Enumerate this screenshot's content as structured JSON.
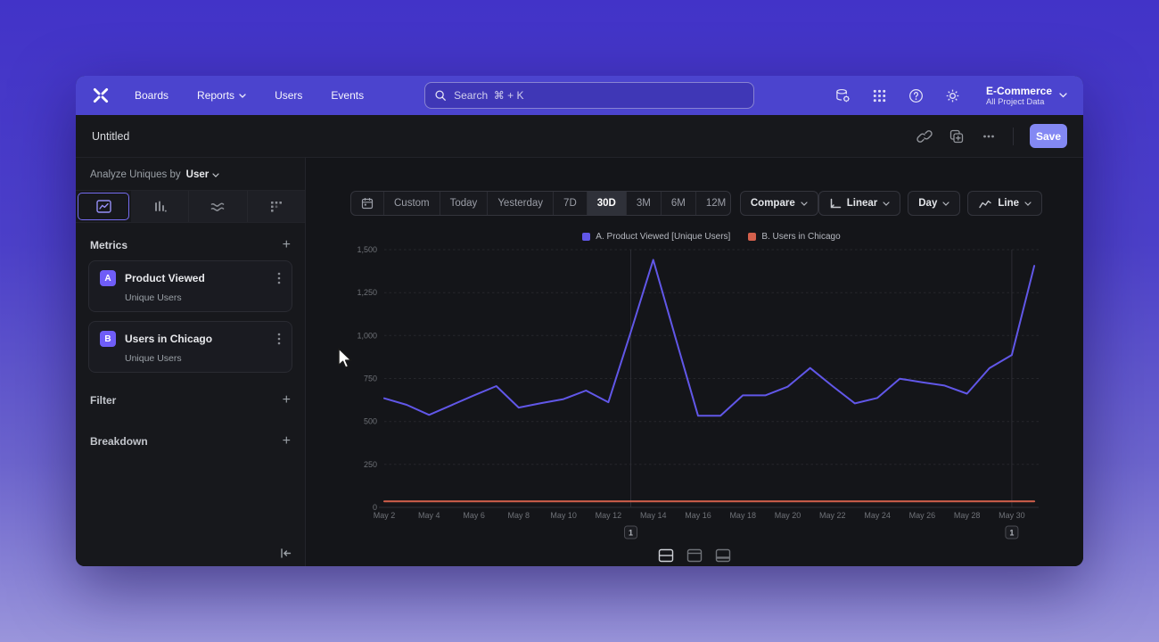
{
  "nav": {
    "items": [
      {
        "label": "Boards"
      },
      {
        "label": "Reports"
      },
      {
        "label": "Users"
      },
      {
        "label": "Events"
      }
    ],
    "search": {
      "placeholder": "Search  ⌘ + K"
    },
    "project": {
      "name": "E-Commerce",
      "scope": "All Project Data"
    }
  },
  "report_header": {
    "title": "Untitled",
    "save_label": "Save"
  },
  "sidebar": {
    "analyze_prefix": "Analyze Uniques by",
    "analyze_value": "User",
    "metrics_label": "Metrics",
    "filter_label": "Filter",
    "breakdown_label": "Breakdown",
    "add_symbol": "+",
    "metrics": [
      {
        "letter": "A",
        "name": "Product Viewed",
        "subtitle": "Unique Users"
      },
      {
        "letter": "B",
        "name": "Users in Chicago",
        "subtitle": "Unique Users"
      }
    ]
  },
  "toolbar": {
    "date_ranges": [
      "Custom",
      "Today",
      "Yesterday",
      "7D",
      "30D",
      "3M",
      "6M",
      "12M"
    ],
    "selected_range": "30D",
    "compare_label": "Compare",
    "scale_label": "Linear",
    "granularity_label": "Day",
    "chart_type_label": "Line"
  },
  "chart_data": {
    "type": "line",
    "title": "",
    "x": [
      "May 2",
      "May 3",
      "May 4",
      "May 5",
      "May 6",
      "May 7",
      "May 8",
      "May 9",
      "May 10",
      "May 11",
      "May 12",
      "May 13",
      "May 14",
      "May 15",
      "May 16",
      "May 17",
      "May 18",
      "May 19",
      "May 20",
      "May 21",
      "May 22",
      "May 23",
      "May 24",
      "May 25",
      "May 26",
      "May 27",
      "May 28",
      "May 29",
      "May 30",
      "May 31"
    ],
    "x_tick_every": 2,
    "ylim": [
      0,
      1500
    ],
    "yticks": [
      {
        "value": 0,
        "label": "0"
      },
      {
        "value": 250,
        "label": "250"
      },
      {
        "value": 500,
        "label": "500"
      },
      {
        "value": 750,
        "label": "750"
      },
      {
        "value": 1000,
        "label": "1,000"
      },
      {
        "value": 1250,
        "label": "1,250"
      },
      {
        "value": 1500,
        "label": "1,500"
      }
    ],
    "series": [
      {
        "name": "A. Product Viewed [Unique Users]",
        "color": "#6157e8",
        "values": [
          635,
          597,
          538,
          595,
          652,
          706,
          581,
          607,
          630,
          680,
          612,
          1020,
          1441,
          985,
          533,
          533,
          652,
          652,
          702,
          811,
          706,
          605,
          637,
          749,
          728,
          709,
          662,
          810,
          887,
          1406
        ]
      },
      {
        "name": "B. Users in Chicago",
        "color": "#d4604c",
        "values": [
          35,
          35,
          35,
          35,
          35,
          35,
          35,
          35,
          35,
          35,
          35,
          35,
          35,
          35,
          35,
          35,
          35,
          35,
          35,
          35,
          35,
          35,
          35,
          35,
          35,
          35,
          35,
          35,
          35,
          35
        ]
      }
    ],
    "annotations": [
      {
        "index": 11,
        "label": "1"
      },
      {
        "index": 28,
        "label": "1"
      }
    ],
    "grid": "horizontal-dashed",
    "legend_position": "top-center"
  },
  "colors": {
    "nav_bg": "#4b44ce",
    "accent_purple": "#6f5df7",
    "save_button": "#8388f3",
    "series_a": "#6157e8",
    "series_b": "#d4604c"
  }
}
